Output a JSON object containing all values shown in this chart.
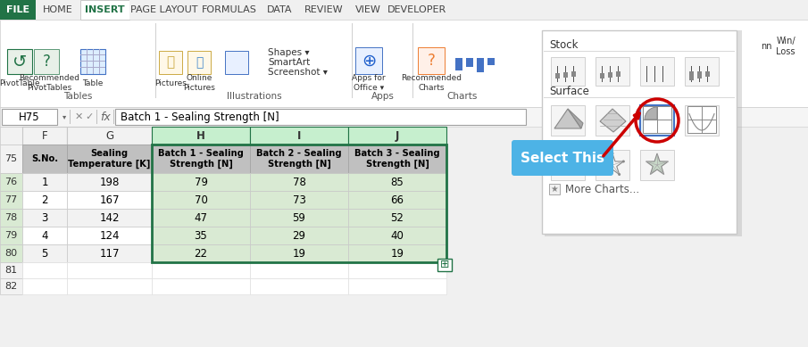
{
  "ribbon_tabs": [
    "FILE",
    "HOME",
    "INSERT",
    "PAGE LAYOUT",
    "FORMULAS",
    "DATA",
    "REVIEW",
    "VIEW",
    "DEVELOPER"
  ],
  "active_tab": "INSERT",
  "file_bg": "#217346",
  "formula_bar_text": "Batch 1 - Sealing Strength [N]",
  "cell_ref": "H75",
  "col_headers": [
    "F",
    "G",
    "H",
    "I",
    "J"
  ],
  "row_numbers": [
    75,
    76,
    77,
    78,
    79,
    80,
    81,
    82
  ],
  "table_headers": [
    "S.No.",
    "Sealing\nTemperature [K]",
    "Batch 1 - Sealing\nStrength [N]",
    "Batch 2 - Sealing\nStrength [N]",
    "Batch 3 - Sealing\nStrength [N]"
  ],
  "table_data": [
    [
      1,
      198,
      79,
      78,
      85
    ],
    [
      2,
      167,
      70,
      73,
      66
    ],
    [
      3,
      142,
      47,
      59,
      52
    ],
    [
      4,
      124,
      35,
      29,
      40
    ],
    [
      5,
      117,
      22,
      19,
      19
    ]
  ],
  "header_bg": "#c0c0c0",
  "selected_col_bg": "#d9ead3",
  "selected_border": "#217346",
  "normal_row_bg": "#ffffff",
  "alt_row_bg": "#f2f2f2",
  "dropdown_title_stock": "Stock",
  "dropdown_title_surface": "Surface",
  "dropdown_more": "More Charts...",
  "select_this_text": "Select This",
  "select_this_bg": "#4db3e6",
  "arrow_color": "#cc0000",
  "circle_color": "#cc0000",
  "dropdown_bg": "#ffffff",
  "dropdown_border": "#c8c8c8"
}
